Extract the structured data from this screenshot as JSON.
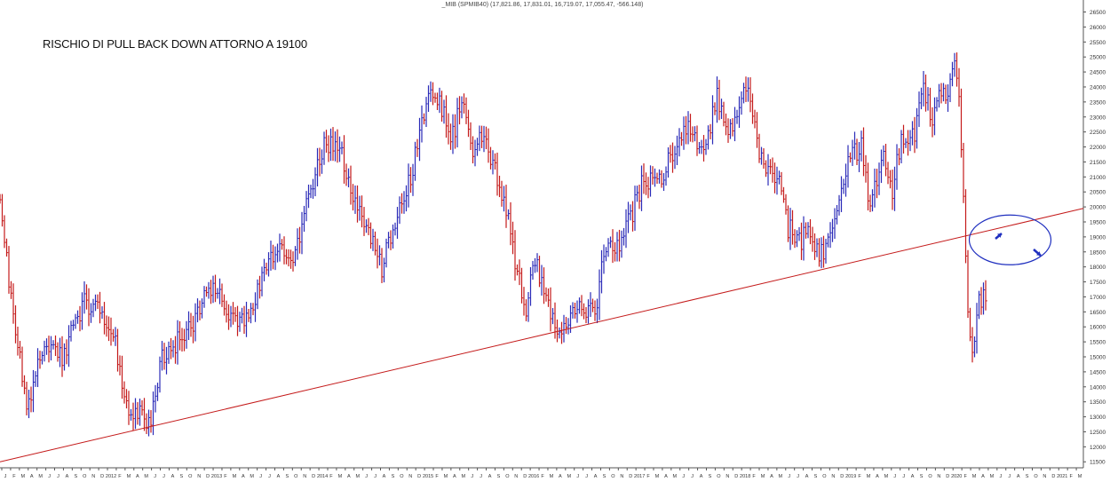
{
  "header_info": "_MIB (SPMIB40) (17,821.86, 17,831.01, 16,719.07, 17,055.47, -566.148)",
  "title": "RISCHIO DI PULL BACK DOWN ATTORNO A 19100",
  "chart_data": {
    "type": "ohlc-bar",
    "title": "RISCHIO DI PULL BACK DOWN ATTORNO A 19100",
    "ylim": [
      11300,
      26900
    ],
    "yticks": [
      11500,
      12000,
      12500,
      13000,
      13500,
      14000,
      14500,
      15000,
      15500,
      16000,
      16500,
      17000,
      17500,
      18000,
      18500,
      19000,
      19500,
      20000,
      20500,
      21000,
      21500,
      22000,
      22500,
      23000,
      23500,
      24000,
      24500,
      25000,
      25500,
      26000,
      26500
    ],
    "x_period": "weekly, approx. 2012 – 2020",
    "xtick_labels": [
      "J",
      "F",
      "M",
      "A",
      "M",
      "J",
      "J",
      "A",
      "S",
      "O",
      "N",
      "D",
      "2012",
      "F",
      "M",
      "A",
      "M",
      "J",
      "J",
      "A",
      "S",
      "O",
      "N",
      "D",
      "2013",
      "F",
      "M",
      "A",
      "M",
      "J",
      "J",
      "A",
      "S",
      "O",
      "N",
      "D",
      "2014",
      "F",
      "M",
      "A",
      "M",
      "J",
      "J",
      "A",
      "S",
      "O",
      "N",
      "D",
      "2015",
      "F",
      "M",
      "A",
      "M",
      "J",
      "J",
      "A",
      "S",
      "O",
      "N",
      "D",
      "2016",
      "F",
      "M",
      "A",
      "M",
      "J",
      "J",
      "A",
      "S",
      "O",
      "N",
      "D",
      "2017",
      "F",
      "M",
      "A",
      "M",
      "J",
      "J",
      "A",
      "S",
      "O",
      "N",
      "D",
      "2018",
      "F",
      "M",
      "A",
      "M",
      "J",
      "J",
      "A",
      "S",
      "O",
      "N",
      "D",
      "2019",
      "F",
      "M",
      "A",
      "M",
      "J",
      "J",
      "A",
      "S",
      "O",
      "N",
      "D",
      "2020",
      "F",
      "M",
      "A",
      "M",
      "J",
      "J",
      "A",
      "S",
      "O",
      "N",
      "D",
      "2021",
      "F",
      "M"
    ],
    "close_anchors": [
      {
        "week": 0,
        "close": 20300
      },
      {
        "week": 5,
        "close": 17000
      },
      {
        "week": 12,
        "close": 13200
      },
      {
        "week": 20,
        "close": 15500
      },
      {
        "week": 28,
        "close": 15000
      },
      {
        "week": 38,
        "close": 16800
      },
      {
        "week": 46,
        "close": 16500
      },
      {
        "week": 52,
        "close": 15500
      },
      {
        "week": 58,
        "close": 13000
      },
      {
        "week": 63,
        "close": 13300
      },
      {
        "week": 68,
        "close": 12700
      },
      {
        "week": 72,
        "close": 14800
      },
      {
        "week": 80,
        "close": 15500
      },
      {
        "week": 88,
        "close": 16300
      },
      {
        "week": 96,
        "close": 17500
      },
      {
        "week": 102,
        "close": 16300
      },
      {
        "week": 110,
        "close": 16200
      },
      {
        "week": 118,
        "close": 17600
      },
      {
        "week": 125,
        "close": 18700
      },
      {
        "week": 132,
        "close": 18300
      },
      {
        "week": 140,
        "close": 20500
      },
      {
        "week": 146,
        "close": 22000
      },
      {
        "week": 152,
        "close": 22100
      },
      {
        "week": 157,
        "close": 21000
      },
      {
        "week": 161,
        "close": 20000
      },
      {
        "week": 167,
        "close": 19000
      },
      {
        "week": 172,
        "close": 18000
      },
      {
        "week": 178,
        "close": 19500
      },
      {
        "week": 185,
        "close": 21000
      },
      {
        "week": 192,
        "close": 23500
      },
      {
        "week": 198,
        "close": 23700
      },
      {
        "week": 203,
        "close": 22000
      },
      {
        "week": 208,
        "close": 23700
      },
      {
        "week": 213,
        "close": 21800
      },
      {
        "week": 218,
        "close": 22500
      },
      {
        "week": 224,
        "close": 21000
      },
      {
        "week": 229,
        "close": 19500
      },
      {
        "week": 233,
        "close": 17800
      },
      {
        "week": 237,
        "close": 16600
      },
      {
        "week": 241,
        "close": 18200
      },
      {
        "week": 245,
        "close": 17000
      },
      {
        "week": 249,
        "close": 16200
      },
      {
        "week": 253,
        "close": 15600
      },
      {
        "week": 257,
        "close": 16400
      },
      {
        "week": 263,
        "close": 16700
      },
      {
        "week": 269,
        "close": 16500
      },
      {
        "week": 272,
        "close": 18500
      },
      {
        "week": 278,
        "close": 18700
      },
      {
        "week": 284,
        "close": 19600
      },
      {
        "week": 290,
        "close": 21000
      },
      {
        "week": 297,
        "close": 20800
      },
      {
        "week": 303,
        "close": 21800
      },
      {
        "week": 310,
        "close": 22600
      },
      {
        "week": 317,
        "close": 21800
      },
      {
        "week": 323,
        "close": 23700
      },
      {
        "week": 328,
        "close": 22500
      },
      {
        "week": 333,
        "close": 23200
      },
      {
        "week": 337,
        "close": 24300
      },
      {
        "week": 341,
        "close": 22000
      },
      {
        "week": 346,
        "close": 21300
      },
      {
        "week": 351,
        "close": 21000
      },
      {
        "week": 355,
        "close": 19300
      },
      {
        "week": 361,
        "close": 18800
      },
      {
        "week": 364,
        "close": 19400
      },
      {
        "week": 368,
        "close": 18500
      },
      {
        "week": 372,
        "close": 18500
      },
      {
        "week": 377,
        "close": 20200
      },
      {
        "week": 383,
        "close": 21600
      },
      {
        "week": 388,
        "close": 22000
      },
      {
        "week": 392,
        "close": 20000
      },
      {
        "week": 398,
        "close": 22000
      },
      {
        "week": 402,
        "close": 20500
      },
      {
        "week": 406,
        "close": 22300
      },
      {
        "week": 412,
        "close": 22500
      },
      {
        "week": 416,
        "close": 23800
      },
      {
        "week": 420,
        "close": 23000
      },
      {
        "week": 424,
        "close": 24000
      },
      {
        "week": 427,
        "close": 23500
      },
      {
        "week": 430,
        "close": 25200
      },
      {
        "week": 432,
        "close": 23800
      },
      {
        "week": 434,
        "close": 20500
      },
      {
        "week": 436,
        "close": 16500
      },
      {
        "week": 438,
        "close": 15000
      },
      {
        "week": 441,
        "close": 16800
      },
      {
        "week": 444,
        "close": 17100
      }
    ],
    "trendline": [
      {
        "week": 0,
        "price": 11500
      },
      {
        "week": 488,
        "price": 19950
      }
    ],
    "annotations": [
      "ellipse near 19100 on trendline",
      "up-right arrow",
      "down-right arrow"
    ]
  }
}
